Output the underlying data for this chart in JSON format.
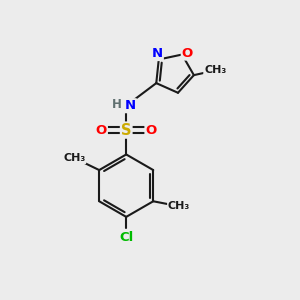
{
  "bg_color": "#ececec",
  "bond_color": "#1a1a1a",
  "bond_width": 1.5,
  "font_size": 9.5,
  "atom_colors": {
    "N": "#0000FF",
    "O": "#FF0000",
    "S": "#ccaa00",
    "Cl": "#00BB00",
    "H": "#607070",
    "C": "#1a1a1a"
  },
  "figsize": [
    3.0,
    3.0
  ],
  "dpi": 100,
  "xlim": [
    0,
    10
  ],
  "ylim": [
    0,
    10
  ]
}
